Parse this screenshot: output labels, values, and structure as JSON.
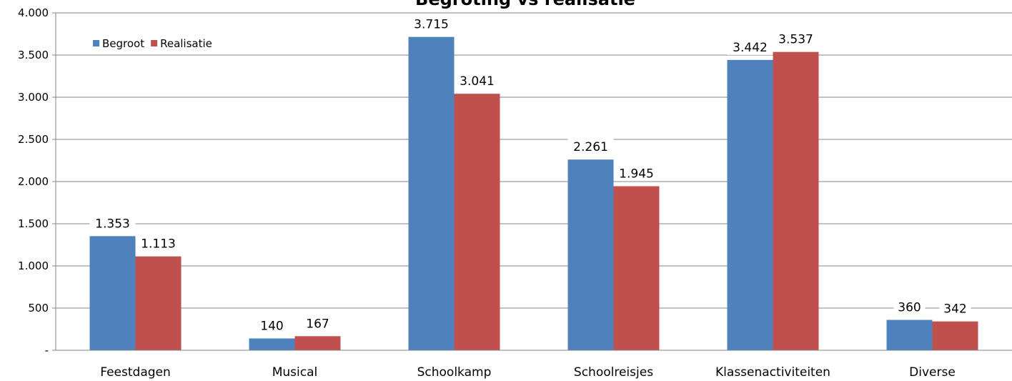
{
  "chart_data": {
    "type": "bar",
    "title": "Begroting vs realisatie",
    "categories": [
      "Feestdagen",
      "Musical",
      "Schoolkamp",
      "Schoolreisjes",
      "Klassenactiviteiten",
      "Diverse"
    ],
    "series": [
      {
        "name": "Begroot",
        "color": "#4F81BD",
        "values": [
          1353,
          140,
          3715,
          2261,
          3442,
          360
        ],
        "labels": [
          "1.353",
          "140",
          "3.715",
          "2.261",
          "3.442",
          "360"
        ]
      },
      {
        "name": "Realisatie",
        "color": "#C0504D",
        "values": [
          1113,
          167,
          3041,
          1945,
          3537,
          342
        ],
        "labels": [
          "1.113",
          "167",
          "3.041",
          "1.945",
          "3.537",
          "342"
        ]
      }
    ],
    "ylim": [
      0,
      4000
    ],
    "yticks": [
      0,
      500,
      1000,
      1500,
      2000,
      2500,
      3000,
      3500,
      4000
    ],
    "ytick_labels": [
      "-",
      "500",
      "1.000",
      "1.500",
      "2.000",
      "2.500",
      "3.000",
      "3.500",
      "4.000"
    ],
    "xlabel": "",
    "ylabel": "",
    "grid": true,
    "legend_position": "top-left"
  }
}
